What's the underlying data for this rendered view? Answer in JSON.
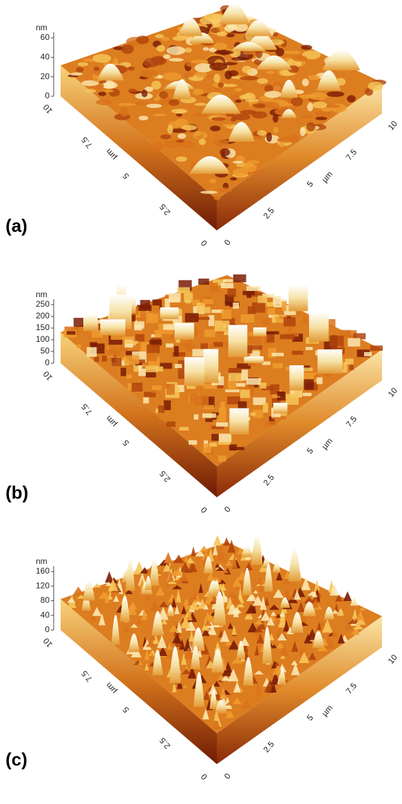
{
  "panels": [
    {
      "label": "(a)",
      "z_unit": "nm",
      "z_ticks": [
        "0",
        "20",
        "40",
        "60"
      ],
      "y_unit": "µm",
      "y_ticks": [
        "0",
        "2.5",
        "5",
        "7.5",
        "10"
      ],
      "x_unit": "µm",
      "x_ticks": [
        "0",
        "2.5",
        "5",
        "7.5",
        "10"
      ]
    },
    {
      "label": "(b)",
      "z_unit": "nm",
      "z_ticks": [
        "0",
        "50",
        "100",
        "150",
        "200",
        "250"
      ],
      "y_unit": "µm",
      "y_ticks": [
        "0",
        "2.5",
        "5",
        "7.5",
        "10"
      ],
      "x_unit": "µm",
      "x_ticks": [
        "0",
        "2.5",
        "5",
        "7.5",
        "10"
      ]
    },
    {
      "label": "(c)",
      "z_unit": "nm",
      "z_ticks": [
        "0",
        "40",
        "80",
        "120",
        "160"
      ],
      "y_unit": "µm",
      "y_ticks": [
        "0",
        "2.5",
        "5",
        "7.5",
        "10"
      ],
      "x_unit": "µm",
      "x_ticks": [
        "0",
        "2.5",
        "5",
        "7.5",
        "10"
      ]
    }
  ]
}
